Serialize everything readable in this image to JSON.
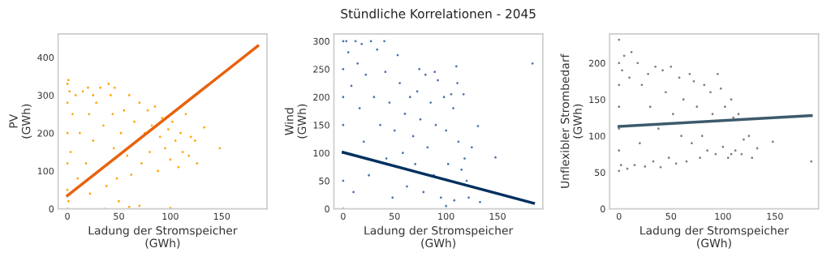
{
  "chart_data": [
    {
      "type": "scatter",
      "xlabel": "Ladung der Stromspeicher\n(GWh)",
      "ylabel": "PV\n(GWh)",
      "xlim": [
        -9,
        194
      ],
      "ylim": [
        0,
        462
      ],
      "xticks": [
        0,
        50,
        100,
        150
      ],
      "yticks": [
        0,
        100,
        200,
        300,
        400
      ],
      "series": [
        {
          "marker": "circle",
          "color": "#ffa500",
          "x": [
            0,
            0,
            0,
            0,
            0,
            1,
            2,
            1,
            3,
            5,
            8,
            10,
            12,
            15,
            18,
            20,
            21,
            22,
            25,
            28,
            30,
            32,
            35,
            38,
            40,
            42,
            44,
            45,
            46,
            48,
            50,
            52,
            55,
            58,
            60,
            62,
            65,
            68,
            70,
            72,
            75,
            78,
            80,
            82,
            85,
            88,
            90,
            92,
            95,
            98,
            100,
            102,
            105,
            108,
            110,
            112,
            115,
            118,
            120,
            124,
            126,
            133,
            148,
            60,
            70,
            36,
            100,
            0,
            25
          ],
          "values": [
            0,
            50,
            120,
            200,
            280,
            340,
            310,
            20,
            150,
            250,
            300,
            80,
            200,
            310,
            120,
            320,
            250,
            40,
            180,
            280,
            100,
            320,
            220,
            60,
            330,
            300,
            250,
            160,
            320,
            80,
            20,
            200,
            260,
            140,
            300,
            90,
            230,
            180,
            280,
            120,
            200,
            260,
            150,
            220,
            270,
            100,
            190,
            240,
            160,
            210,
            130,
            230,
            180,
            110,
            200,
            150,
            250,
            140,
            190,
            180,
            120,
            215,
            160,
            5,
            8,
            0,
            2,
            330,
            300
          ]
        },
        {
          "type": "line",
          "color": "#e8620e",
          "x": [
            0,
            185
          ],
          "values": [
            35,
            430
          ]
        }
      ]
    },
    {
      "type": "scatter",
      "title": "Stündliche Korrelationen - 2045",
      "xlabel": "Ladung der Stromspeicher\n(GWh)",
      "ylabel": "Wind\n(GWh)",
      "xlim": [
        -9,
        194
      ],
      "ylim": [
        0,
        313
      ],
      "xticks": [
        0,
        50,
        100,
        150
      ],
      "yticks": [
        0,
        50,
        100,
        150,
        200,
        250,
        300
      ],
      "series": [
        {
          "marker": "circle",
          "color": "#4c72b0",
          "x": [
            0,
            0,
            0,
            0,
            0,
            0,
            0,
            3,
            5,
            8,
            10,
            12,
            14,
            16,
            18,
            20,
            22,
            25,
            27,
            30,
            33,
            36,
            40,
            41,
            42,
            45,
            48,
            50,
            53,
            55,
            58,
            60,
            62,
            65,
            68,
            70,
            72,
            74,
            75,
            78,
            80,
            82,
            85,
            88,
            89,
            90,
            92,
            95,
            98,
            100,
            102,
            105,
            107,
            108,
            110,
            111,
            112,
            115,
            117,
            118,
            120,
            125,
            131,
            133,
            148,
            184,
            122,
            100
          ],
          "values": [
            0,
            50,
            100,
            150,
            200,
            250,
            300,
            300,
            280,
            220,
            30,
            300,
            260,
            180,
            295,
            120,
            240,
            60,
            300,
            200,
            285,
            150,
            300,
            245,
            90,
            190,
            20,
            140,
            275,
            225,
            100,
            170,
            40,
            200,
            130,
            80,
            210,
            250,
            160,
            30,
            240,
            110,
            190,
            60,
            245,
            150,
            230,
            20,
            200,
            140,
            80,
            205,
            180,
            15,
            255,
            225,
            120,
            70,
            205,
            90,
            50,
            110,
            148,
            12,
            92,
            260,
            20,
            5
          ]
        },
        {
          "type": "line",
          "color": "#00305e",
          "x": [
            0,
            185
          ],
          "values": [
            101,
            10
          ]
        }
      ]
    },
    {
      "type": "scatter",
      "xlabel": "Ladung der Stromspeicher\n(GWh)",
      "ylabel": "Unflexibler Strombedarf\n(GWh)",
      "xlim": [
        -9,
        192
      ],
      "ylim": [
        0,
        240
      ],
      "xticks": [
        0,
        50,
        100,
        150
      ],
      "yticks": [
        0,
        50,
        100,
        150,
        200
      ],
      "series": [
        {
          "marker": "circle",
          "color": "#808080",
          "x": [
            0,
            0,
            0,
            0,
            0,
            0,
            0,
            2,
            3,
            5,
            8,
            10,
            12,
            15,
            18,
            20,
            22,
            25,
            28,
            30,
            33,
            35,
            38,
            40,
            42,
            45,
            48,
            50,
            52,
            55,
            58,
            60,
            62,
            65,
            68,
            70,
            72,
            75,
            78,
            80,
            82,
            85,
            88,
            90,
            93,
            95,
            98,
            100,
            102,
            105,
            108,
            110,
            112,
            115,
            118,
            120,
            125,
            128,
            133,
            148,
            185,
            108
          ],
          "values": [
            52,
            80,
            110,
            140,
            170,
            200,
            232,
            60,
            190,
            210,
            55,
            180,
            215,
            60,
            200,
            90,
            170,
            58,
            185,
            140,
            65,
            195,
            110,
            57,
            190,
            160,
            70,
            195,
            130,
            62,
            180,
            100,
            150,
            65,
            185,
            90,
            175,
            140,
            70,
            100,
            170,
            80,
            160,
            130,
            75,
            185,
            165,
            85,
            140,
            70,
            150,
            125,
            80,
            130,
            75,
            95,
            100,
            70,
            83,
            92,
            65,
            75
          ]
        },
        {
          "type": "line",
          "color": "#3d5a6c",
          "x": [
            0,
            185
          ],
          "values": [
            113,
            128
          ]
        }
      ]
    }
  ]
}
